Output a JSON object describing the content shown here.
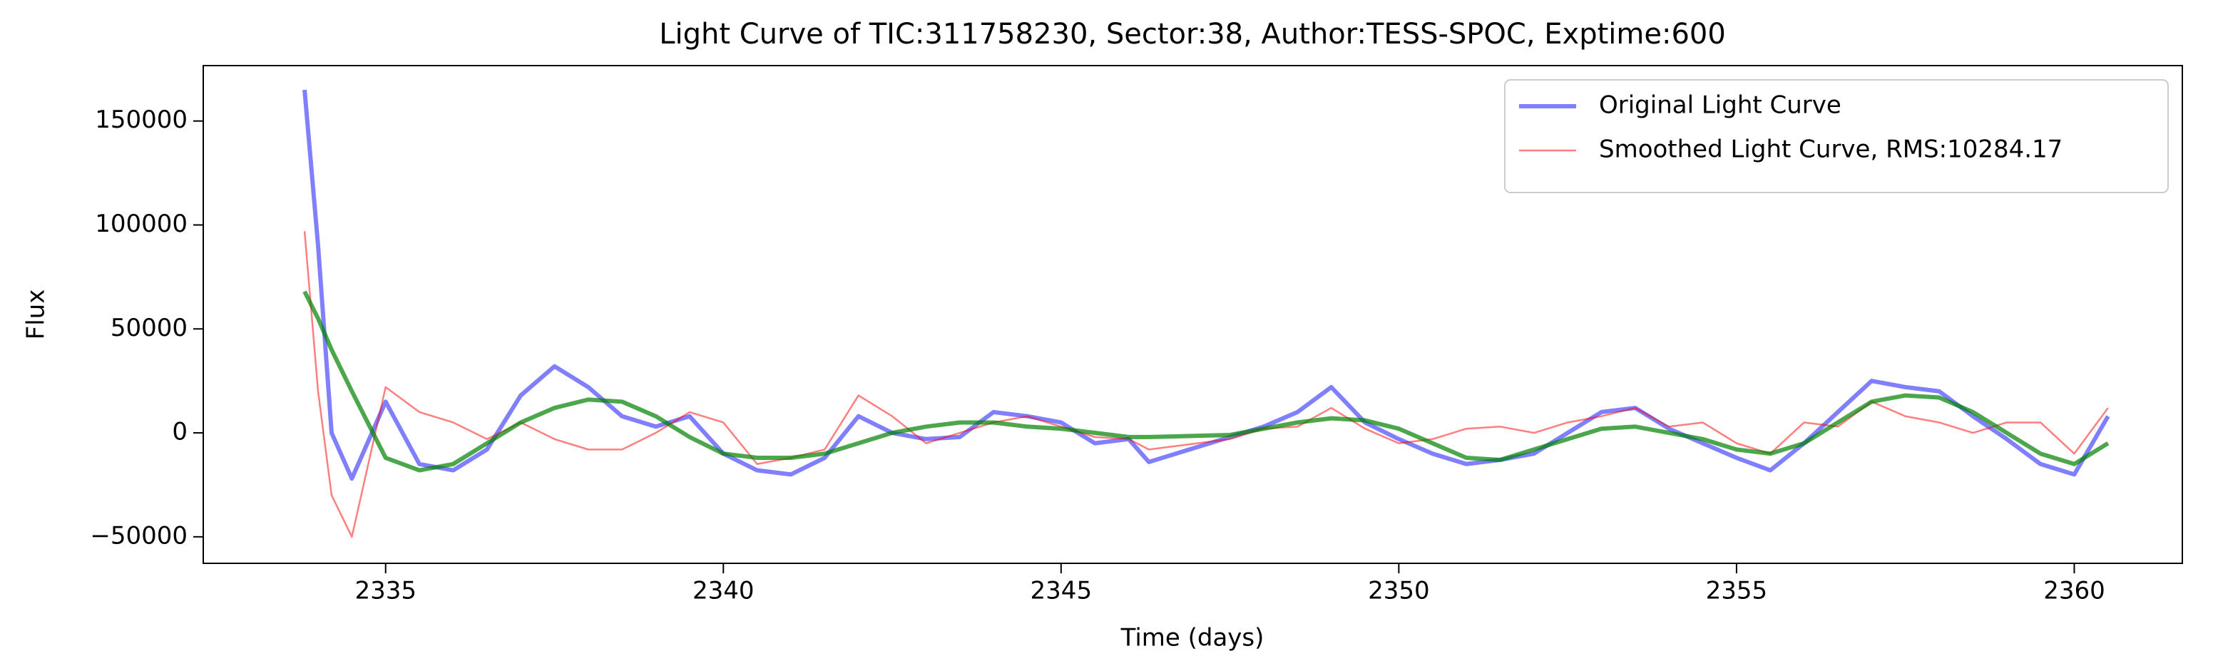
{
  "chart_data": {
    "type": "line",
    "title": "Light Curve of TIC:311758230, Sector:38, Author:TESS-SPOC, Exptime:600",
    "xlabel": "Time (days)",
    "ylabel": "Flux",
    "x": [
      2333.8,
      2334.0,
      2334.2,
      2334.5,
      2335,
      2335.5,
      2336,
      2336.5,
      2337,
      2337.5,
      2338,
      2338.5,
      2339,
      2339.5,
      2340,
      2340.5,
      2341,
      2341.5,
      2342,
      2342.5,
      2343,
      2343.5,
      2344,
      2344.5,
      2345,
      2345.5,
      2346,
      2346.3,
      2347.5,
      2348,
      2348.5,
      2349,
      2349.5,
      2350,
      2350.5,
      2351,
      2351.5,
      2352,
      2352.5,
      2353,
      2353.5,
      2354,
      2354.5,
      2355,
      2355.5,
      2356,
      2356.5,
      2357,
      2357.5,
      2358,
      2358.5,
      2359,
      2359.5,
      2360,
      2360.5
    ],
    "series": [
      {
        "name": "Original Light Curve",
        "color": "#0000ff",
        "values": [
          165000,
          90000,
          0,
          -22000,
          15000,
          -15000,
          -18000,
          -8000,
          18000,
          32000,
          22000,
          8000,
          3000,
          8000,
          -10000,
          -18000,
          -20000,
          -12000,
          8000,
          0,
          -3000,
          -2000,
          10000,
          8000,
          5000,
          -5000,
          -3000,
          -14000,
          -2000,
          3000,
          10000,
          22000,
          5000,
          -3000,
          -10000,
          -15000,
          -13000,
          -10000,
          0,
          10000,
          12000,
          2000,
          -5000,
          -12000,
          -18000,
          -5000,
          10000,
          25000,
          22000,
          20000,
          8000,
          -3000,
          -15000,
          -20000,
          8000
        ]
      },
      {
        "name": "Smoothed Light Curve, RMS:10284.17",
        "color": "#ff0000",
        "values": [
          97000,
          20000,
          -30000,
          -50000,
          22000,
          10000,
          5000,
          -3000,
          5000,
          -3000,
          -8000,
          -8000,
          0,
          10000,
          5000,
          -15000,
          -12000,
          -8000,
          18000,
          8000,
          -5000,
          0,
          5000,
          8000,
          3000,
          -2000,
          -3000,
          -8000,
          -3000,
          2000,
          3000,
          12000,
          2000,
          -5000,
          -3000,
          2000,
          3000,
          0,
          5000,
          8000,
          12000,
          3000,
          5000,
          -5000,
          -10000,
          5000,
          3000,
          15000,
          8000,
          5000,
          0,
          5000,
          5000,
          -10000,
          12000
        ]
      },
      {
        "color": "#008000",
        "values": [
          68000,
          55000,
          40000,
          20000,
          -12000,
          -18000,
          -15000,
          -5000,
          5000,
          12000,
          16000,
          15000,
          8000,
          -2000,
          -10000,
          -12000,
          -12000,
          -10000,
          -5000,
          0,
          3000,
          5000,
          5000,
          3000,
          2000,
          0,
          -2000,
          -2000,
          -1000,
          2000,
          5000,
          7000,
          6000,
          2000,
          -5000,
          -12000,
          -13000,
          -8000,
          -3000,
          2000,
          3000,
          0,
          -3000,
          -8000,
          -10000,
          -5000,
          5000,
          15000,
          18000,
          17000,
          10000,
          0,
          -10000,
          -15000,
          -5000
        ]
      }
    ],
    "xlim": [
      2332.3,
      2361.6
    ],
    "xticks": [
      2335,
      2340,
      2345,
      2350,
      2355,
      2360
    ],
    "ylim": [
      -62750,
      176650
    ],
    "yticks": [
      {
        "value": -50000,
        "label": "−50000"
      },
      0,
      50000,
      100000,
      150000
    ],
    "legend": "upper right"
  }
}
